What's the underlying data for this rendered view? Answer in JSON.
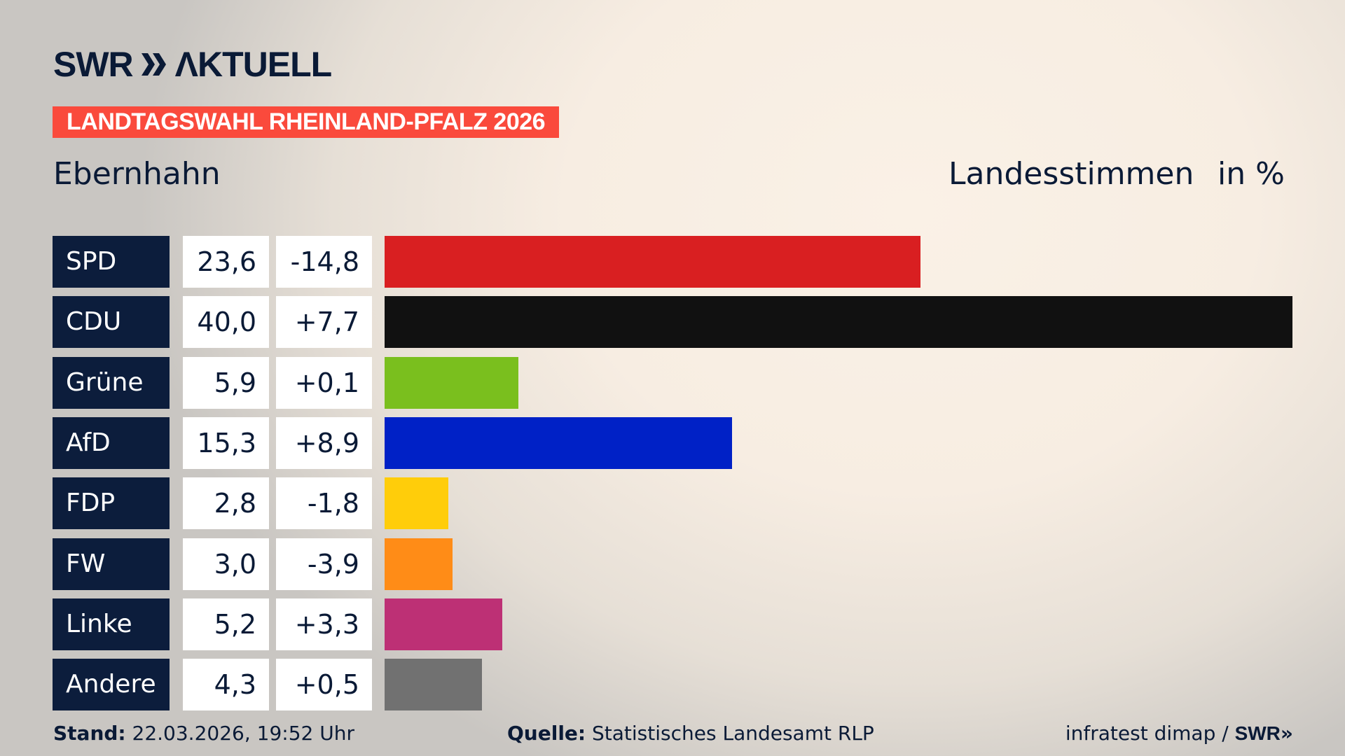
{
  "brand": {
    "logo_text": "SWR AKTUELL",
    "colors": {
      "navy": "#0c1d3c",
      "banner": "#fa4a3c"
    }
  },
  "banner": "LANDTAGSWAHL RHEINLAND-PFALZ 2026",
  "region": "Ebernhahn",
  "measure": "Landesstimmen",
  "unit": "in %",
  "chart_data": {
    "type": "bar",
    "orientation": "horizontal",
    "categories": [
      "SPD",
      "CDU",
      "Grüne",
      "AfD",
      "FDP",
      "FW",
      "Linke",
      "Andere"
    ],
    "values": [
      23.6,
      40.0,
      5.9,
      15.3,
      2.8,
      3.0,
      5.2,
      4.3
    ],
    "value_labels": [
      "23,6",
      "40,0",
      "5,9",
      "15,3",
      "2,8",
      "3,0",
      "5,2",
      "4,3"
    ],
    "diff_labels": [
      "-14,8",
      "+7,7",
      "+0,1",
      "+8,9",
      "-1,8",
      "-3,9",
      "+3,3",
      "+0,5"
    ],
    "diffs": [
      -14.8,
      7.7,
      0.1,
      8.9,
      -1.8,
      -3.9,
      3.3,
      0.5
    ],
    "colors": [
      "#d91f21",
      "#111111",
      "#7abf1e",
      "#0021c6",
      "#ffcd0a",
      "#ff8c17",
      "#bd3075",
      "#717171"
    ],
    "xlim": [
      0,
      40
    ]
  },
  "footer": {
    "stand_label": "Stand:",
    "stand_value": " 22.03.2026, 19:52 Uhr",
    "source_label": "Quelle:",
    "source_value": " Statistisches Landesamt RLP",
    "credit": "infratest dimap / ",
    "credit_logo": "SWR"
  }
}
